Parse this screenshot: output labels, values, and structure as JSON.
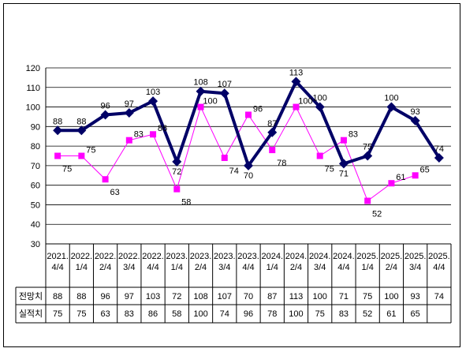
{
  "chart_data": {
    "type": "line",
    "title": "",
    "xlabel": "",
    "ylabel": "",
    "ylim": [
      30,
      120
    ],
    "yticks": [
      30,
      40,
      50,
      60,
      70,
      80,
      90,
      100,
      110,
      120
    ],
    "grid": true,
    "categories": [
      [
        "2021.",
        "4/4"
      ],
      [
        "2022.",
        "1/4"
      ],
      [
        "2022.",
        "2/4"
      ],
      [
        "2022.",
        "3/4"
      ],
      [
        "2022.",
        "4/4"
      ],
      [
        "2023.",
        "1/4"
      ],
      [
        "2023.",
        "2/4"
      ],
      [
        "2023.",
        "3/4"
      ],
      [
        "2023.",
        "4/4"
      ],
      [
        "2024.",
        "1/4"
      ],
      [
        "2024.",
        "2/4"
      ],
      [
        "2024.",
        "3/4"
      ],
      [
        "2024.",
        "4/4"
      ],
      [
        "2025.",
        "1/4"
      ],
      [
        "2025.",
        "2/4"
      ],
      [
        "2025.",
        "3/4"
      ],
      [
        "2025.",
        "4/4"
      ]
    ],
    "series": [
      {
        "name": "전망치",
        "color": "#000066",
        "marker": "diamond",
        "values": [
          88,
          88,
          96,
          97,
          103,
          72,
          108,
          107,
          70,
          87,
          113,
          100,
          71,
          75,
          100,
          93,
          74
        ]
      },
      {
        "name": "실적치",
        "color": "#ff00ff",
        "marker": "square",
        "values": [
          75,
          75,
          63,
          83,
          86,
          58,
          100,
          74,
          96,
          78,
          100,
          75,
          83,
          52,
          61,
          65,
          null
        ]
      }
    ]
  }
}
